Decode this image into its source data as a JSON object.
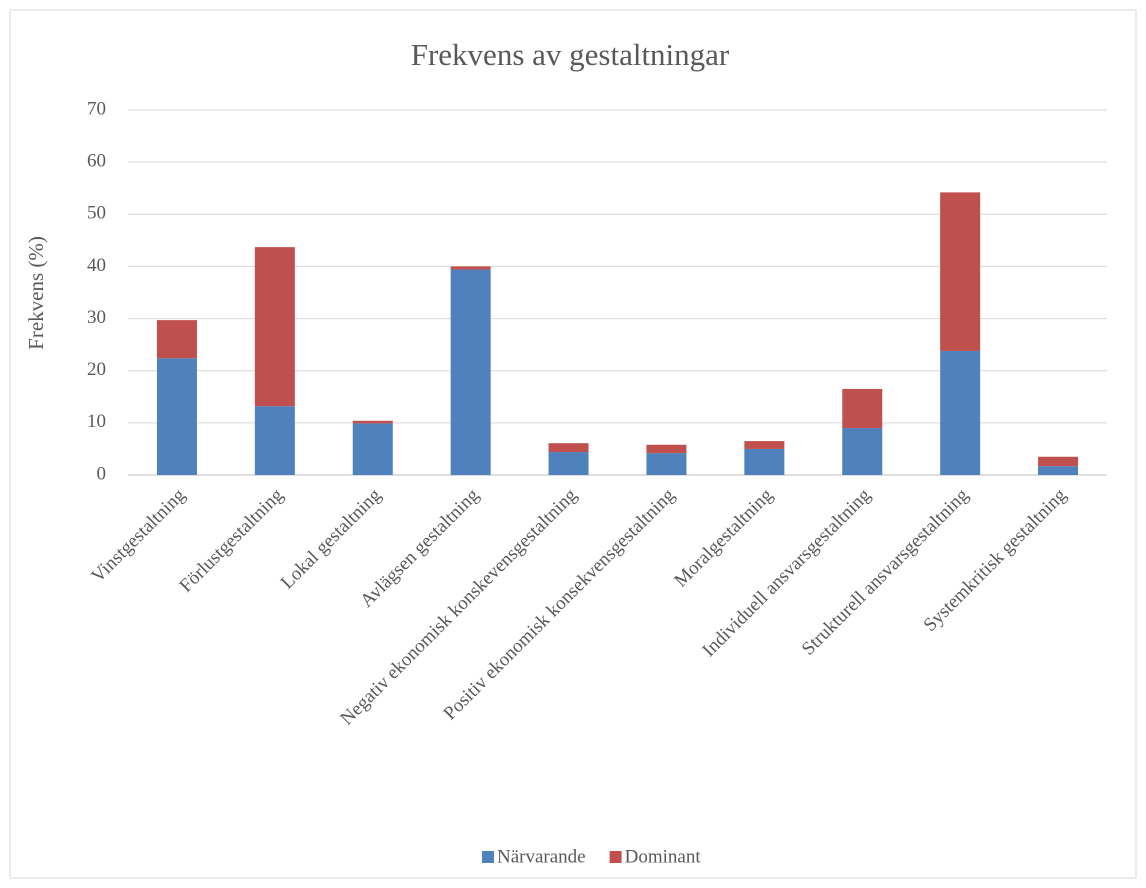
{
  "chart_data": {
    "type": "stacked_bar",
    "title": "Frekvens av gestaltningar",
    "y_label": "Frekvens (%)",
    "categories": [
      "Vinstgestaltning",
      "Förlustgestaltning",
      "Lokal gestaltning",
      "Avlägsen gestaltning",
      "Negativ ekonomisk konskevensgestaltning",
      "Positiv ekonomisk konsekvensgestaltning",
      "Moralgestaltning",
      "Individuell ansvarsgestaltning",
      "Strukturell ansvarsgestaltning",
      "Systemkritisk gestaltning"
    ],
    "series": [
      {
        "name": "Närvarande",
        "color": "#4f81bd",
        "values": [
          22.4,
          13.2,
          9.9,
          39.4,
          4.4,
          4.2,
          5.0,
          9.0,
          23.8,
          1.7
        ]
      },
      {
        "name": "Dominant",
        "color": "#c0504d",
        "values": [
          7.3,
          30.5,
          0.5,
          0.6,
          1.7,
          1.6,
          1.5,
          7.5,
          30.4,
          1.8
        ]
      }
    ],
    "ylim": [
      0,
      70
    ],
    "yticks": [
      0,
      10,
      20,
      30,
      40,
      50,
      60,
      70
    ],
    "grid": true,
    "legend": "bottom"
  }
}
